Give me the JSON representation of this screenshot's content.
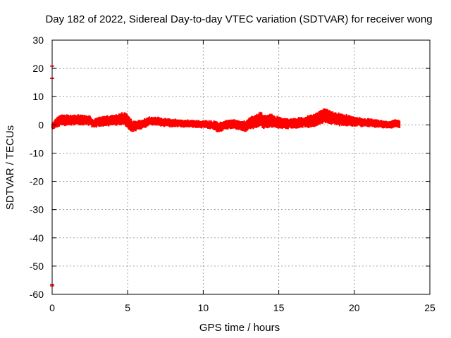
{
  "chart_data": {
    "type": "scatter",
    "title": "Day 182 of 2022, Sidereal Day-to-day VTEC variation (SDTVAR) for receiver wong",
    "xlabel": "GPS time / hours",
    "ylabel": "SDTVAR / TECUs",
    "xlim": [
      0,
      25
    ],
    "ylim": [
      -60,
      30
    ],
    "xticks": [
      0,
      5,
      10,
      15,
      20,
      25
    ],
    "yticks": [
      30,
      20,
      10,
      0,
      -10,
      -20,
      -30,
      -40,
      -50,
      -60
    ],
    "xtick_labels": [
      "0",
      "5",
      "10",
      "15",
      "20",
      "25"
    ],
    "ytick_labels": [
      "30",
      "20",
      "10",
      "0",
      "-10",
      "-20",
      "-30",
      "-40",
      "-50",
      "-60"
    ],
    "grid": true,
    "series": [
      {
        "name": "SDTVAR",
        "color": "#ff0000",
        "x": [
          0.0,
          0.2,
          0.4,
          0.6,
          1.0,
          1.5,
          2.0,
          2.5,
          2.7,
          3.0,
          3.5,
          4.0,
          4.5,
          4.8,
          5.0,
          5.3,
          5.6,
          6.0,
          6.5,
          7.0,
          7.5,
          8.0,
          8.5,
          9.0,
          9.5,
          10.0,
          10.5,
          10.8,
          11.0,
          11.3,
          11.6,
          12.0,
          12.5,
          12.8,
          13.0,
          13.5,
          13.8,
          14.0,
          14.5,
          15.0,
          15.5,
          16.0,
          16.5,
          17.0,
          17.5,
          17.8,
          18.0,
          18.5,
          19.0,
          19.5,
          20.0,
          20.5,
          21.0,
          21.5,
          22.0,
          22.5,
          22.8,
          23.0
        ],
        "y": [
          -0.5,
          0.3,
          1.2,
          1.8,
          1.6,
          1.8,
          1.7,
          1.6,
          0.3,
          1.1,
          1.3,
          1.6,
          2.0,
          2.2,
          1.0,
          -0.6,
          -0.4,
          0.4,
          1.5,
          1.2,
          0.8,
          0.7,
          0.6,
          0.4,
          0.3,
          0.2,
          0.1,
          -0.4,
          -0.9,
          -0.4,
          0.1,
          0.2,
          -0.2,
          -0.6,
          0.6,
          1.1,
          2.3,
          0.9,
          1.6,
          0.7,
          0.4,
          0.6,
          0.8,
          1.2,
          1.8,
          2.8,
          3.3,
          2.6,
          1.9,
          1.6,
          1.2,
          0.9,
          0.8,
          0.4,
          0.1,
          0.2,
          0.6,
          0.3
        ],
        "spread": [
          0.8,
          1.2,
          1.6,
          1.5,
          1.5,
          1.4,
          1.4,
          1.3,
          1.0,
          1.4,
          1.4,
          1.5,
          1.6,
          1.8,
          1.9,
          1.6,
          1.4,
          1.3,
          1.2,
          1.2,
          1.1,
          1.1,
          1.0,
          1.0,
          1.0,
          1.0,
          1.1,
          1.3,
          1.4,
          1.3,
          1.3,
          1.3,
          1.4,
          1.5,
          1.6,
          1.8,
          2.0,
          1.9,
          1.8,
          1.6,
          1.4,
          1.4,
          1.5,
          1.7,
          1.8,
          1.9,
          1.9,
          1.8,
          1.7,
          1.5,
          1.3,
          1.2,
          1.1,
          1.0,
          1.0,
          1.0,
          1.0,
          1.0
        ]
      }
    ],
    "error_bars": [
      {
        "x": 0.0,
        "low": 16.5,
        "high": 20.8
      },
      {
        "x": 0.0,
        "low": -57.0,
        "high": -56.5
      }
    ]
  }
}
